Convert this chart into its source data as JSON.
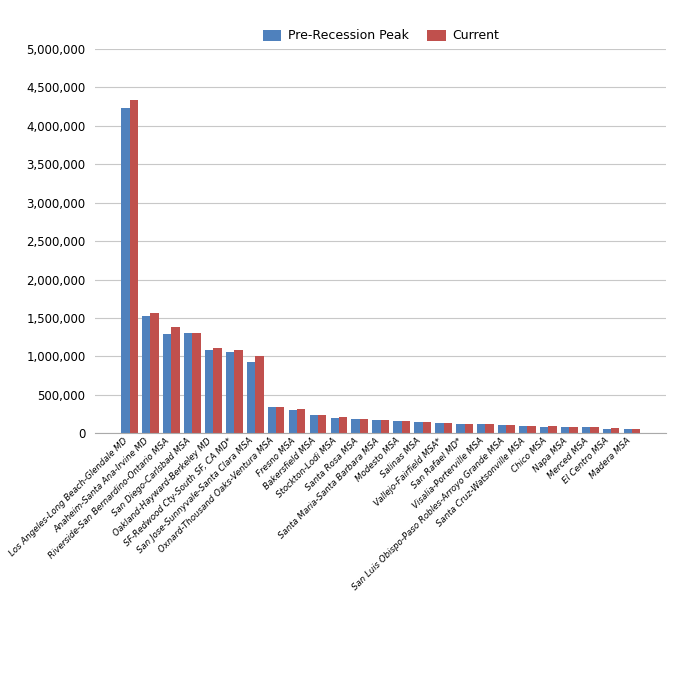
{
  "categories": [
    "Los Angeles-Long Beach-Glendale MD",
    "Anaheim-Santa Ana-Irvine MD",
    "Riverside-San Bernardino-Ontario MSA",
    "San Diego-Carlsbad MSA",
    "Oakland-Hayward-Berkeley MD",
    "SF-Redwood Cty-South SF, CA MD*",
    "San Jose-Sunnyvale-Santa Clara MSA",
    "Oxnard-Thousand Oaks-Ventura MSA",
    "Fresno MSA",
    "Bakersfield MSA",
    "Stockton-Lodi MSA",
    "Santa Rosa MSA",
    "Santa Maria-Santa Barbara MSA",
    "Modesto MSA",
    "Salinas MSA",
    "Vallejo-Fairfield MSA*",
    "San Rafael MD*",
    "Visalia-Porterville MSA",
    "San Luis Obispo-Paso Robles-Arroyo Grande MSA",
    "Santa Cruz-Watsonville MSA",
    "Chico MSA",
    "Napa MSA",
    "Merced MSA",
    "El Centro MSA",
    "Madera MSA"
  ],
  "pre_recession": [
    4230000,
    1530000,
    1290000,
    1310000,
    1080000,
    1060000,
    930000,
    340000,
    310000,
    240000,
    205000,
    190000,
    170000,
    160000,
    150000,
    130000,
    120000,
    118000,
    108000,
    94000,
    88000,
    83000,
    78000,
    63000,
    53000
  ],
  "current": [
    4340000,
    1560000,
    1380000,
    1310000,
    1110000,
    1085000,
    1010000,
    348000,
    318000,
    245000,
    207000,
    192000,
    172000,
    162000,
    152000,
    133000,
    122000,
    121000,
    111000,
    97000,
    91000,
    86000,
    80000,
    65000,
    55000
  ],
  "pre_recession_color": "#4F81BD",
  "current_color": "#C0504D",
  "ylim": [
    0,
    5000000
  ],
  "yticks": [
    0,
    500000,
    1000000,
    1500000,
    2000000,
    2500000,
    3000000,
    3500000,
    4000000,
    4500000,
    5000000
  ],
  "legend_labels": [
    "Pre-Recession Peak",
    "Current"
  ],
  "background_color": "#FFFFFF",
  "grid_color": "#C8C8C8"
}
